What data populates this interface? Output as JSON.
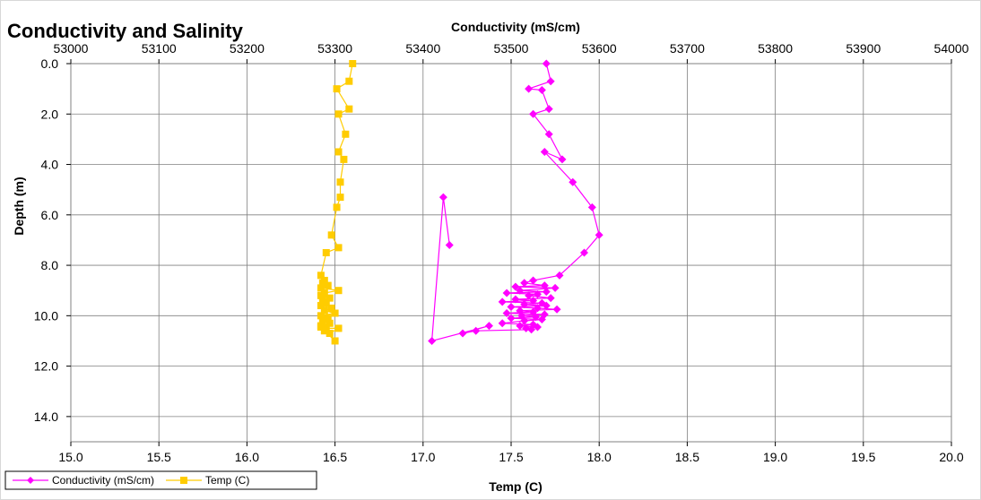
{
  "chart_data": {
    "type": "scatter",
    "title": "Conductivity and Salinity",
    "ylabel": "Depth (m)",
    "ylim": [
      0,
      15
    ],
    "y_reversed": true,
    "y_ticks": [
      0,
      2,
      4,
      6,
      8,
      10,
      12,
      14
    ],
    "y_tick_labels": [
      "0.0",
      "2.0",
      "4.0",
      "6.0",
      "8.0",
      "10.0",
      "12.0",
      "14.0"
    ],
    "x_bottom": {
      "label": "Temp (C)",
      "range": [
        15,
        20
      ],
      "ticks": [
        15,
        15.5,
        16,
        16.5,
        17,
        17.5,
        18,
        18.5,
        19,
        19.5,
        20
      ],
      "tick_labels": [
        "15.0",
        "15.5",
        "16.0",
        "16.5",
        "17.0",
        "17.5",
        "18.0",
        "18.5",
        "19.0",
        "19.5",
        "20.0"
      ]
    },
    "x_top": {
      "label": "Conductivity (mS/cm)",
      "range": [
        53000,
        54000
      ],
      "ticks": [
        53000,
        53100,
        53200,
        53300,
        53400,
        53500,
        53600,
        53700,
        53800,
        53900,
        54000
      ],
      "tick_labels": [
        "53000",
        "53100",
        "53200",
        "53300",
        "53400",
        "53500",
        "53600",
        "53700",
        "53800",
        "53900",
        "54000"
      ]
    },
    "grid": true,
    "legend_position": "bottom-left",
    "series": [
      {
        "name": "Conductivity (mS/cm)",
        "axis": "top",
        "color": "#ff00ff",
        "marker": "diamond",
        "points": [
          [
            53540,
            0
          ],
          [
            53545,
            0.7
          ],
          [
            53520,
            1.0
          ],
          [
            53535,
            1.05
          ],
          [
            53543,
            1.8
          ],
          [
            53525,
            2.0
          ],
          [
            53543,
            2.8
          ],
          [
            53558,
            3.8
          ],
          [
            53538,
            3.5
          ],
          [
            53570,
            4.7
          ],
          [
            53592,
            5.7
          ],
          [
            53600,
            6.8
          ],
          [
            53583,
            7.5
          ],
          [
            53555,
            8.4
          ],
          [
            53525,
            8.6
          ],
          [
            53515,
            8.7
          ],
          [
            53538,
            8.8
          ],
          [
            53505,
            8.85
          ],
          [
            53550,
            8.9
          ],
          [
            53510,
            9.0
          ],
          [
            53540,
            9.05
          ],
          [
            53495,
            9.1
          ],
          [
            53530,
            9.15
          ],
          [
            53520,
            9.2
          ],
          [
            53545,
            9.3
          ],
          [
            53505,
            9.35
          ],
          [
            53525,
            9.4
          ],
          [
            53490,
            9.45
          ],
          [
            53535,
            9.5
          ],
          [
            53515,
            9.55
          ],
          [
            53540,
            9.6
          ],
          [
            53500,
            9.65
          ],
          [
            53530,
            9.7
          ],
          [
            53552,
            9.75
          ],
          [
            53510,
            9.8
          ],
          [
            53525,
            9.85
          ],
          [
            53495,
            9.9
          ],
          [
            53538,
            9.95
          ],
          [
            53512,
            10.0
          ],
          [
            53528,
            10.05
          ],
          [
            53500,
            10.1
          ],
          [
            53535,
            10.15
          ],
          [
            53515,
            10.2
          ],
          [
            53490,
            10.3
          ],
          [
            53525,
            10.35
          ],
          [
            53510,
            10.4
          ],
          [
            53530,
            10.45
          ],
          [
            53517,
            10.5
          ],
          [
            53523,
            10.55
          ],
          [
            53460,
            10.6
          ],
          [
            53445,
            10.7
          ],
          [
            53475,
            10.4
          ],
          [
            53410,
            11.0
          ],
          [
            53423,
            5.3
          ],
          [
            53430,
            7.2
          ]
        ]
      },
      {
        "name": "Temp (C)",
        "axis": "bottom",
        "color": "#ffcc00",
        "marker": "square",
        "points": [
          [
            16.6,
            0
          ],
          [
            16.58,
            0.7
          ],
          [
            16.51,
            1.0
          ],
          [
            16.58,
            1.8
          ],
          [
            16.52,
            2.0
          ],
          [
            16.56,
            2.8
          ],
          [
            16.52,
            3.5
          ],
          [
            16.55,
            3.8
          ],
          [
            16.53,
            4.7
          ],
          [
            16.53,
            5.3
          ],
          [
            16.51,
            5.7
          ],
          [
            16.48,
            6.8
          ],
          [
            16.52,
            7.3
          ],
          [
            16.45,
            7.5
          ],
          [
            16.42,
            8.4
          ],
          [
            16.44,
            8.6
          ],
          [
            16.43,
            8.7
          ],
          [
            16.46,
            8.8
          ],
          [
            16.42,
            8.9
          ],
          [
            16.52,
            9.0
          ],
          [
            16.44,
            9.1
          ],
          [
            16.42,
            9.2
          ],
          [
            16.47,
            9.3
          ],
          [
            16.43,
            9.4
          ],
          [
            16.45,
            9.5
          ],
          [
            16.42,
            9.6
          ],
          [
            16.48,
            9.7
          ],
          [
            16.44,
            9.8
          ],
          [
            16.5,
            9.9
          ],
          [
            16.42,
            10.0
          ],
          [
            16.46,
            10.1
          ],
          [
            16.43,
            10.2
          ],
          [
            16.47,
            10.3
          ],
          [
            16.42,
            10.4
          ],
          [
            16.45,
            10.5
          ],
          [
            16.52,
            10.5
          ],
          [
            16.47,
            10.7
          ],
          [
            16.5,
            11.0
          ],
          [
            16.44,
            10.6
          ],
          [
            16.42,
            10.45
          ]
        ]
      }
    ]
  }
}
